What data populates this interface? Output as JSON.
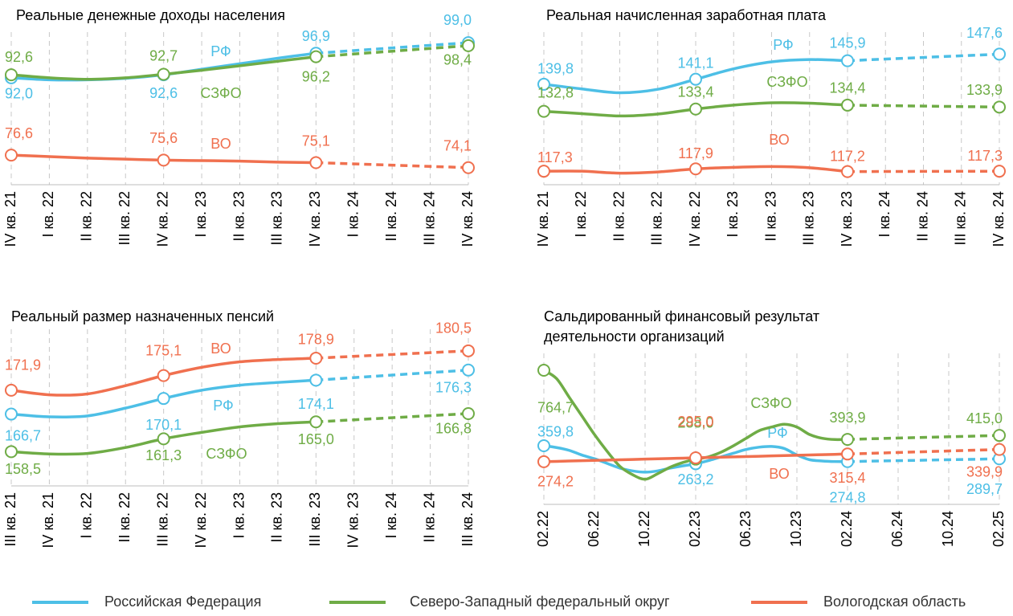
{
  "chart_data": [
    {
      "type": "line",
      "title": "Реальные денежные доходы населения",
      "forecast_from": 8,
      "categories": [
        "IV кв. 21",
        "I кв. 22",
        "II кв. 22",
        "III кв. 22",
        "IV кв. 22",
        "I кв. 23",
        "II кв. 23",
        "III кв. 23",
        "IV кв. 23",
        "I кв. 24",
        "II кв. 24",
        "III кв. 24",
        "IV кв. 24"
      ],
      "ylim": [
        70.7,
        101.1
      ],
      "series": [
        {
          "name": "РФ",
          "color": "#4dbfe6",
          "values": [
            92.0,
            91.6,
            91.6,
            91.9,
            92.6,
            93.7,
            94.8,
            95.9,
            96.9,
            null,
            null,
            null,
            99.0
          ],
          "value_labels": [
            "92,0",
            null,
            null,
            null,
            "92,6",
            null,
            null,
            null,
            "96,9",
            null,
            null,
            null,
            "99,0"
          ]
        },
        {
          "name": "СЗФО",
          "color": "#6fac46",
          "values": [
            92.6,
            92.0,
            91.7,
            92.0,
            92.7,
            93.5,
            94.4,
            95.3,
            96.2,
            null,
            null,
            null,
            98.4
          ],
          "value_labels": [
            "92,6",
            null,
            null,
            null,
            "92,7",
            null,
            null,
            null,
            "96,2",
            null,
            null,
            null,
            "98,4"
          ]
        },
        {
          "name": "ВО",
          "color": "#f0704f",
          "values": [
            76.6,
            76.3,
            76.0,
            75.8,
            75.6,
            75.5,
            75.4,
            75.2,
            75.1,
            null,
            null,
            null,
            74.1
          ],
          "value_labels": [
            "76,6",
            null,
            null,
            null,
            "75,6",
            null,
            null,
            null,
            "75,1",
            null,
            null,
            null,
            "74,1"
          ]
        }
      ]
    },
    {
      "type": "line",
      "title": "Реальная начисленная заработная плата",
      "forecast_from": 8,
      "categories": [
        "IV кв. 21",
        "I кв. 22",
        "II кв. 22",
        "III кв. 22",
        "IV кв. 22",
        "I кв. 23",
        "II кв. 23",
        "III кв. 23",
        "IV кв. 23",
        "I кв. 24",
        "II кв. 24",
        "III кв. 24",
        "IV кв. 24"
      ],
      "ylim": [
        113.8,
        153.3
      ],
      "series": [
        {
          "name": "РФ",
          "color": "#4dbfe6",
          "values": [
            139.8,
            138.6,
            137.6,
            138.5,
            141.1,
            143.8,
            145.6,
            146.2,
            145.9,
            null,
            null,
            null,
            147.6
          ],
          "value_labels": [
            "139,8",
            null,
            null,
            null,
            "141,1",
            null,
            null,
            null,
            "145,9",
            null,
            null,
            null,
            "147,6"
          ]
        },
        {
          "name": "СЗФО",
          "color": "#6fac46",
          "values": [
            132.8,
            132.2,
            131.6,
            132.1,
            133.4,
            134.4,
            135.0,
            134.9,
            134.4,
            null,
            null,
            null,
            133.9
          ],
          "value_labels": [
            "132,8",
            null,
            null,
            null,
            "133,4",
            null,
            null,
            null,
            "134,4",
            null,
            null,
            null,
            "133,9"
          ]
        },
        {
          "name": "ВО",
          "color": "#f0704f",
          "values": [
            117.3,
            117.3,
            116.8,
            117.1,
            117.9,
            118.3,
            118.5,
            118.2,
            117.2,
            null,
            null,
            null,
            117.3
          ],
          "value_labels": [
            "117,3",
            null,
            null,
            null,
            "117,9",
            null,
            null,
            null,
            "117,2",
            null,
            null,
            null,
            "117,3"
          ]
        }
      ]
    },
    {
      "type": "line",
      "title": "Реальный размер назначенных пенсий",
      "forecast_from": 8,
      "categories": [
        "III кв. 21",
        "IV кв. 21",
        "I кв. 22",
        "II кв. 22",
        "III кв. 22",
        "IV кв. 22",
        "I кв. 23",
        "II кв. 23",
        "III кв. 23",
        "IV кв. 23",
        "I кв. 24",
        "II кв. 24",
        "III кв. 24"
      ],
      "ylim": [
        151.9,
        185.2
      ],
      "series": [
        {
          "name": "РФ",
          "color": "#4dbfe6",
          "values": [
            166.7,
            166.1,
            166.3,
            168.0,
            170.1,
            171.9,
            173.0,
            173.6,
            174.1,
            null,
            null,
            null,
            176.3
          ],
          "value_labels": [
            "166,7",
            null,
            null,
            null,
            "170,1",
            null,
            null,
            null,
            "174,1",
            null,
            null,
            null,
            "176,3"
          ]
        },
        {
          "name": "СЗФО",
          "color": "#6fac46",
          "values": [
            158.5,
            158.0,
            158.1,
            159.4,
            161.3,
            162.7,
            163.9,
            164.6,
            165.0,
            null,
            null,
            null,
            166.8
          ],
          "value_labels": [
            "158,5",
            null,
            null,
            null,
            "161,3",
            null,
            null,
            null,
            "165,0",
            null,
            null,
            null,
            "166,8"
          ]
        },
        {
          "name": "ВО",
          "color": "#f0704f",
          "values": [
            171.9,
            170.9,
            171.1,
            172.9,
            175.1,
            176.9,
            178.1,
            178.6,
            178.9,
            null,
            null,
            null,
            180.5
          ],
          "value_labels": [
            "171,9",
            null,
            null,
            null,
            "175,1",
            null,
            null,
            null,
            "178,9",
            null,
            null,
            null,
            "180,5"
          ]
        }
      ]
    },
    {
      "type": "line",
      "title": [
        "Сальдированный финансовый результат",
        "деятельности организаций"
      ],
      "forecast_from": 24,
      "categories": [
        "02.22",
        null,
        null,
        null,
        "06.22",
        null,
        null,
        null,
        "10.22",
        null,
        null,
        null,
        "02.23",
        null,
        null,
        null,
        "06.23",
        null,
        null,
        null,
        "10.23",
        null,
        null,
        null,
        "02.24",
        null,
        null,
        null,
        "06.24",
        null,
        null,
        null,
        "10.24",
        null,
        null,
        null,
        "02.25"
      ],
      "ylim": [
        166,
        855
      ],
      "series": [
        {
          "name": "РФ",
          "color": "#4dbfe6",
          "values": [
            359.8,
            350,
            335,
            310,
            290,
            265,
            240,
            225,
            218,
            225,
            240,
            252,
            263.2,
            280,
            300,
            320,
            340,
            352,
            356,
            345,
            310,
            285,
            278,
            275,
            274.8,
            null,
            null,
            null,
            null,
            null,
            null,
            null,
            null,
            null,
            null,
            null,
            289.7
          ],
          "value_labels": [
            "359,8",
            null,
            null,
            null,
            null,
            null,
            null,
            null,
            null,
            null,
            null,
            null,
            "263,2",
            null,
            null,
            null,
            null,
            null,
            null,
            null,
            null,
            null,
            null,
            null,
            "274,8",
            null,
            null,
            null,
            null,
            null,
            null,
            null,
            null,
            null,
            null,
            null,
            "289,7"
          ]
        },
        {
          "name": "СЗФО",
          "color": "#6fac46",
          "values": [
            764.7,
            720,
            620,
            520,
            420,
            330,
            250,
            205,
            180,
            210,
            245,
            270,
            288.0,
            300,
            325,
            360,
            400,
            440,
            460,
            475,
            460,
            420,
            400,
            393,
            393.9,
            null,
            null,
            null,
            null,
            null,
            null,
            null,
            null,
            null,
            null,
            null,
            415.0
          ],
          "value_labels": [
            "764,7",
            null,
            null,
            null,
            null,
            null,
            null,
            null,
            null,
            null,
            null,
            null,
            "288,0",
            null,
            null,
            null,
            null,
            null,
            null,
            null,
            null,
            null,
            null,
            null,
            "393,9",
            null,
            null,
            null,
            null,
            null,
            null,
            null,
            null,
            null,
            null,
            null,
            "415,0"
          ]
        },
        {
          "name": "ВО",
          "color": "#f0704f",
          "values": [
            274.2,
            275.9,
            277.7,
            279.4,
            281.1,
            282.9,
            284.6,
            286.3,
            288.1,
            289.8,
            291.5,
            293.3,
            295.0,
            296.7,
            298.4,
            300.1,
            301.8,
            303.5,
            305.2,
            306.9,
            308.6,
            310.3,
            312.0,
            313.7,
            315.4,
            null,
            null,
            null,
            null,
            null,
            null,
            null,
            null,
            null,
            null,
            null,
            339.9
          ],
          "value_labels": [
            "274,2",
            null,
            null,
            null,
            null,
            null,
            null,
            null,
            null,
            null,
            null,
            null,
            "295,0",
            null,
            null,
            null,
            null,
            null,
            null,
            null,
            null,
            null,
            null,
            null,
            "315,4",
            null,
            null,
            null,
            null,
            null,
            null,
            null,
            null,
            null,
            null,
            null,
            "339,9"
          ]
        }
      ]
    }
  ],
  "legend": [
    {
      "name": "Российская Федерация",
      "color": "#4dbfe6"
    },
    {
      "name": "Северо-Западный федеральный округ",
      "color": "#6fac46"
    },
    {
      "name": "Вологодская область",
      "color": "#f0704f"
    }
  ]
}
